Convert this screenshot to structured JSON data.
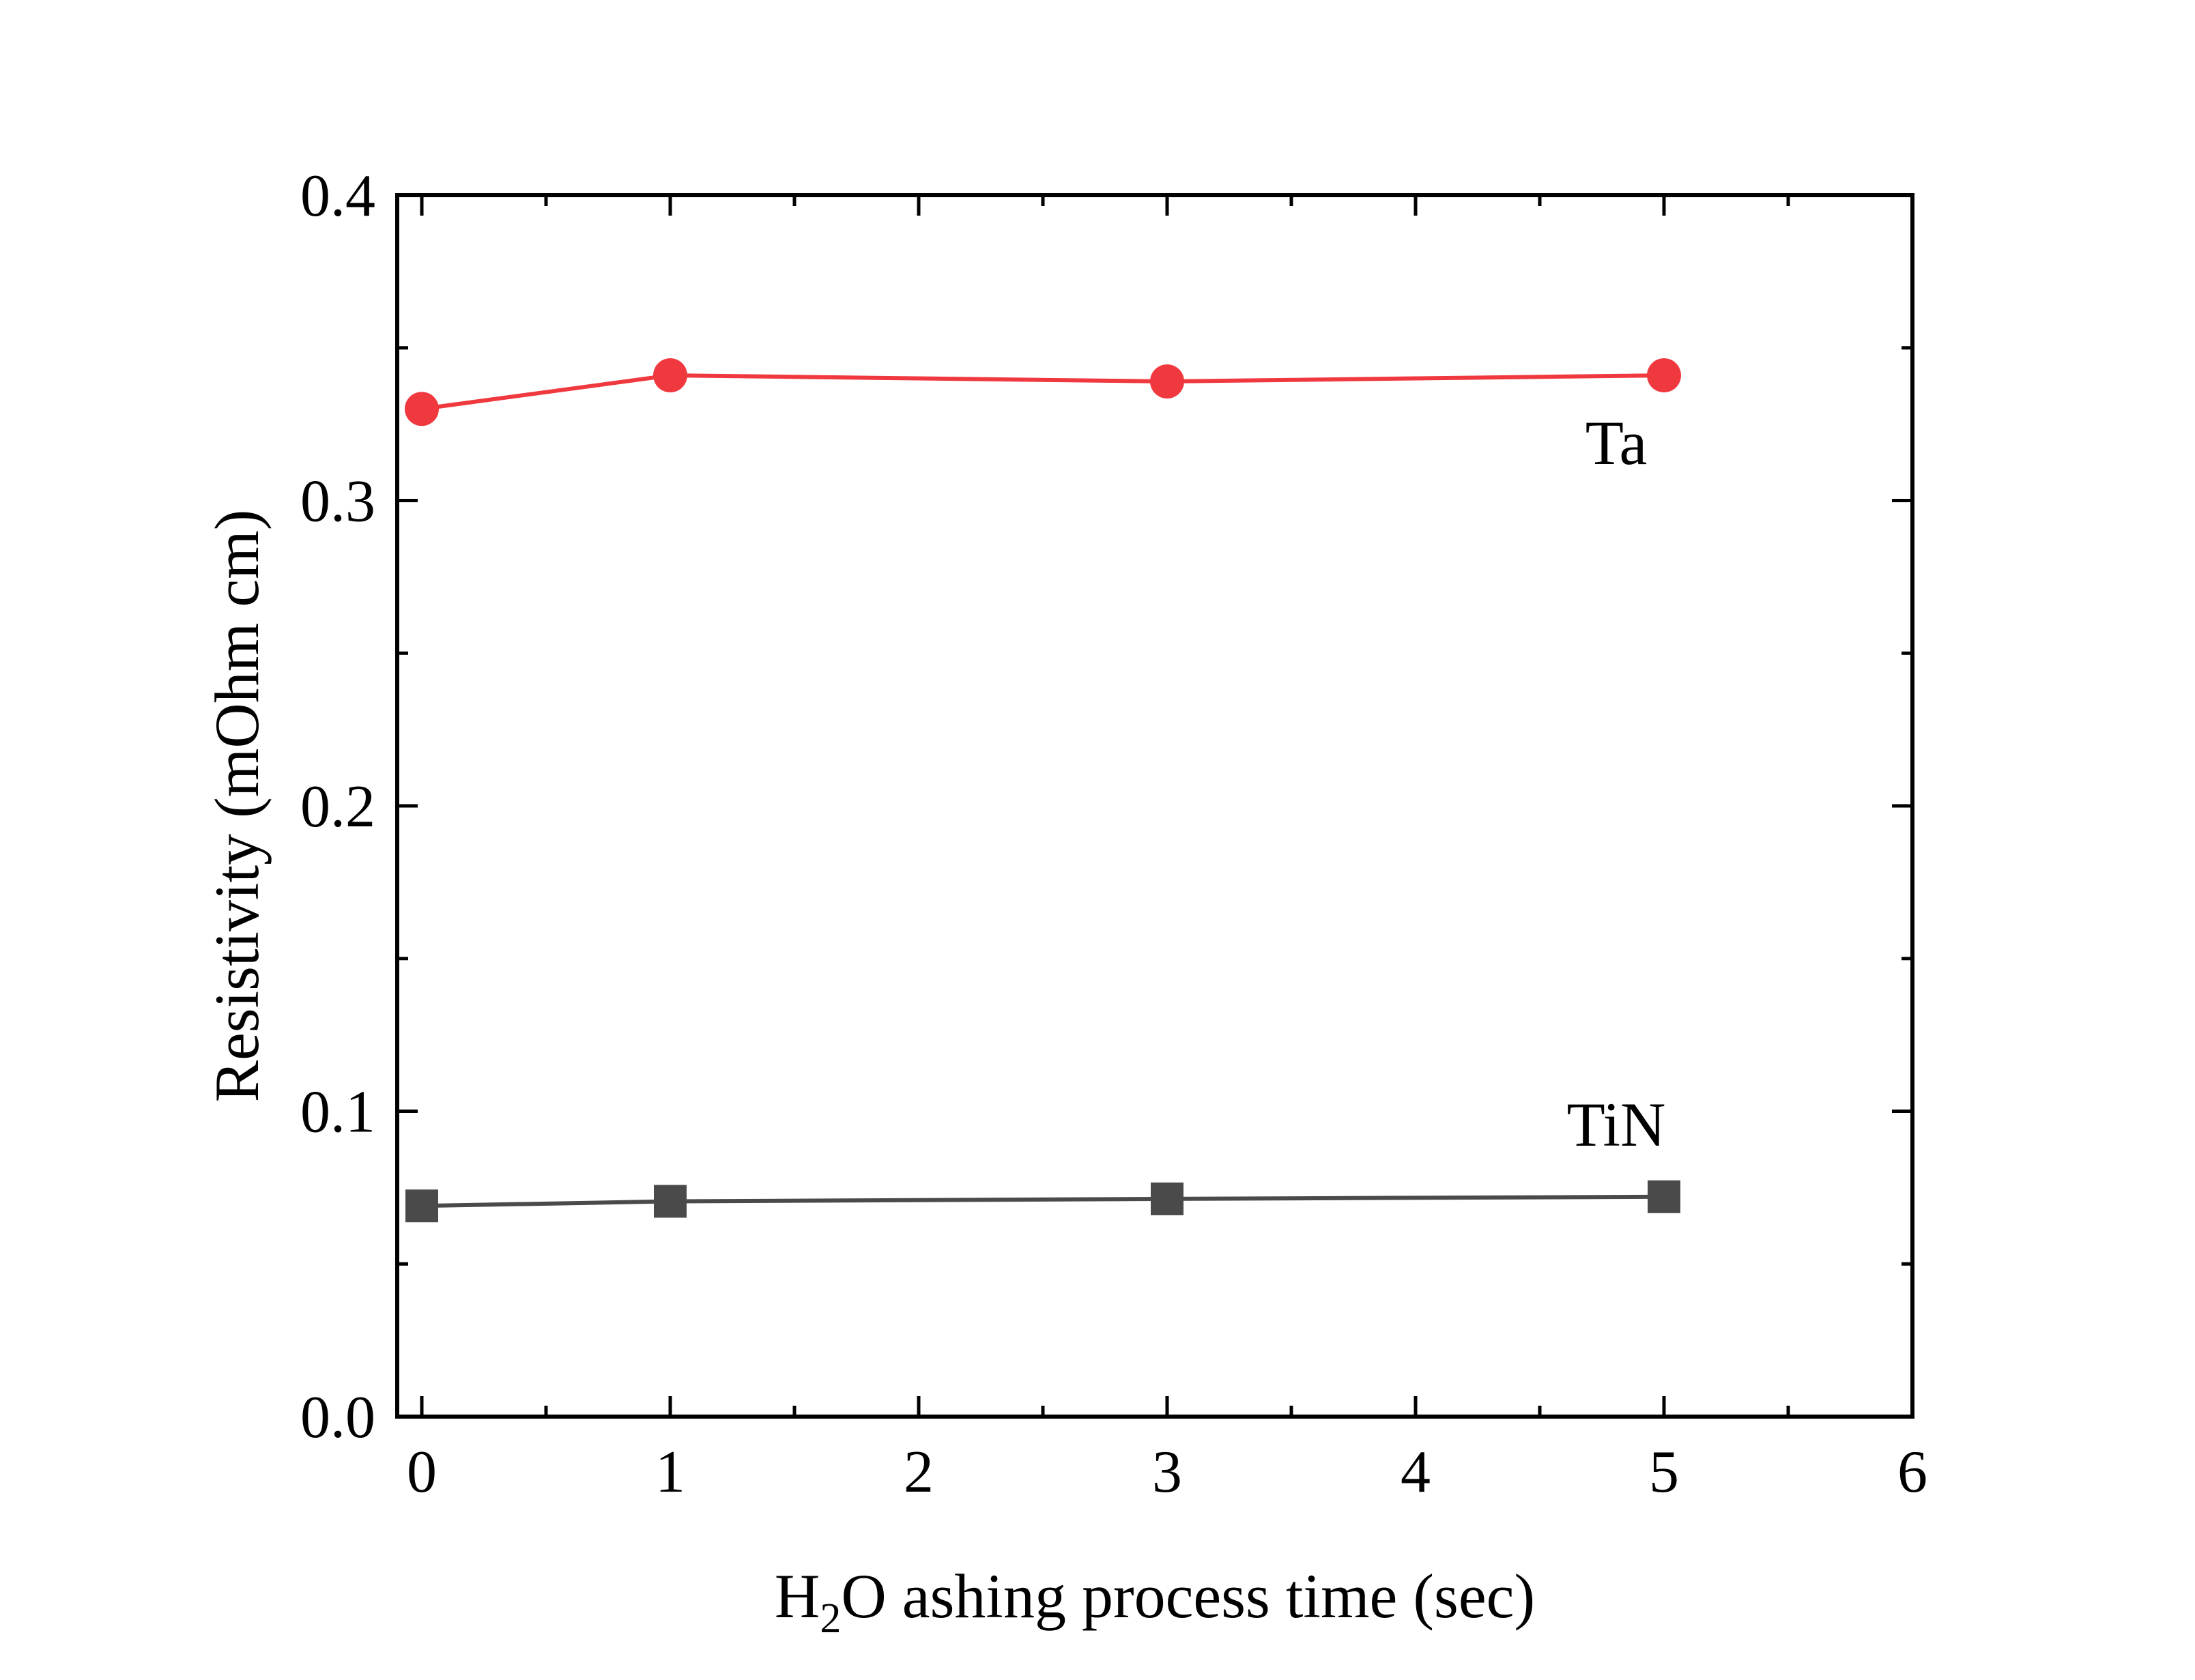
{
  "chart_data": {
    "type": "line",
    "title": "",
    "xlabel": {
      "prefix": "H",
      "subscript": "2",
      "suffix": "O ashing process time (sec)"
    },
    "ylabel": "Resistivity (mOhm cm)",
    "xlim": [
      -0.1,
      6
    ],
    "ylim": [
      0,
      0.4
    ],
    "x_ticks": [
      0,
      1,
      2,
      3,
      4,
      5,
      6
    ],
    "y_ticks": [
      0.0,
      0.1,
      0.2,
      0.3,
      0.4
    ],
    "x_tick_labels": [
      "0",
      "1",
      "2",
      "3",
      "4",
      "5",
      "6"
    ],
    "y_tick_labels": [
      "0.0",
      "0.1",
      "0.2",
      "0.3",
      "0.4"
    ],
    "grid": false,
    "legend": "none",
    "series": [
      {
        "name": "Ta",
        "x": [
          0,
          1,
          3,
          5
        ],
        "values": [
          0.33,
          0.341,
          0.339,
          0.341
        ],
        "color": "#f0393f",
        "marker": "circle"
      },
      {
        "name": "TiN",
        "x": [
          0,
          1,
          3,
          5
        ],
        "values": [
          0.069,
          0.0705,
          0.0713,
          0.072
        ],
        "color": "#4a4a4a",
        "marker": "square"
      }
    ]
  }
}
